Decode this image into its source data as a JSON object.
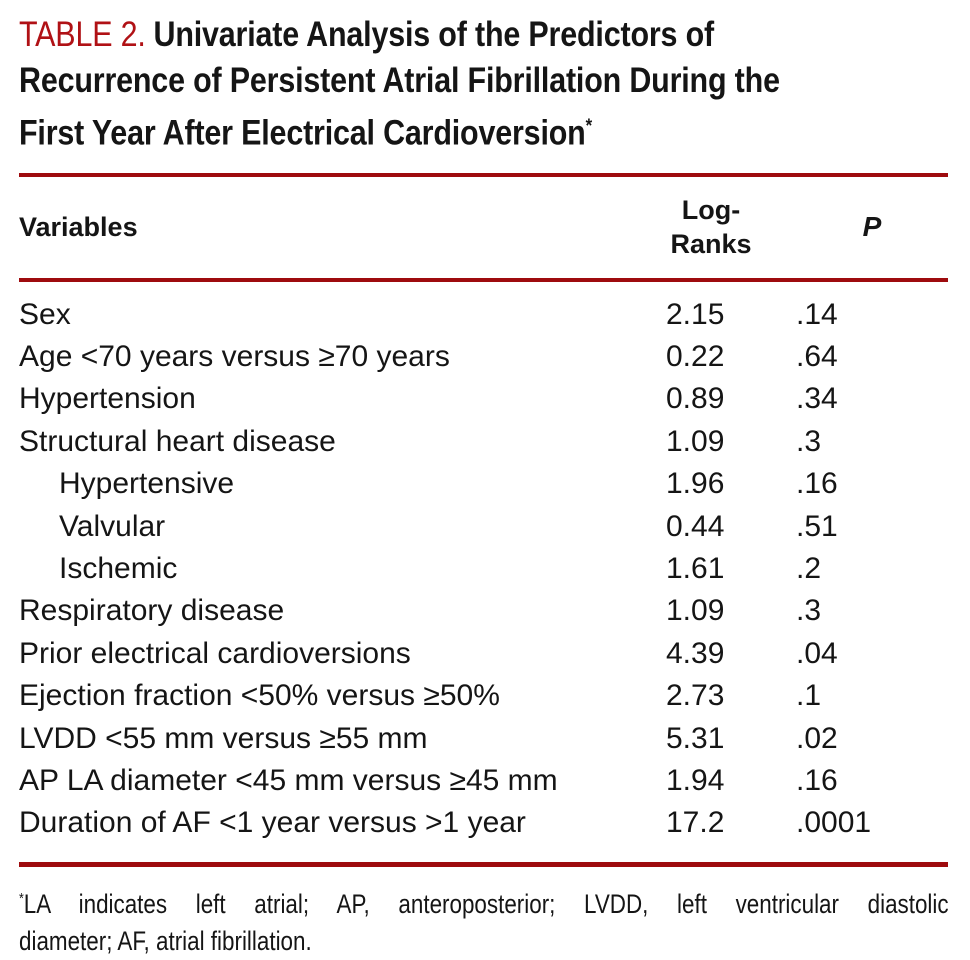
{
  "title": {
    "label": "TABLE 2.",
    "line1": "Univariate Analysis of the Predictors of",
    "line2": "Recurrence of Persistent Atrial Fibrillation During the",
    "line3": "First Year After Electrical Cardioversion",
    "footnote_marker": "*"
  },
  "table": {
    "header": {
      "variables": "Variables",
      "log_ranks": "Log-Ranks",
      "p": "P"
    },
    "rows": [
      {
        "variable": "Sex",
        "indent": false,
        "log_rank": "2.15",
        "p": ".14"
      },
      {
        "variable": "Age <70 years versus ≥70 years",
        "indent": false,
        "log_rank": "0.22",
        "p": ".64"
      },
      {
        "variable": "Hypertension",
        "indent": false,
        "log_rank": "0.89",
        "p": ".34"
      },
      {
        "variable": "Structural heart disease",
        "indent": false,
        "log_rank": "1.09",
        "p": ".3"
      },
      {
        "variable": "Hypertensive",
        "indent": true,
        "log_rank": "1.96",
        "p": ".16"
      },
      {
        "variable": "Valvular",
        "indent": true,
        "log_rank": "0.44",
        "p": ".51"
      },
      {
        "variable": "Ischemic",
        "indent": true,
        "log_rank": "1.61",
        "p": ".2"
      },
      {
        "variable": "Respiratory disease",
        "indent": false,
        "log_rank": "1.09",
        "p": ".3"
      },
      {
        "variable": "Prior electrical cardioversions",
        "indent": false,
        "log_rank": "4.39",
        "p": ".04"
      },
      {
        "variable": "Ejection fraction <50% versus ≥50%",
        "indent": false,
        "log_rank": "2.73",
        "p": ".1"
      },
      {
        "variable": "LVDD <55 mm versus ≥55 mm",
        "indent": false,
        "log_rank": "5.31",
        "p": ".02"
      },
      {
        "variable": "AP LA diameter <45 mm versus ≥45 mm",
        "indent": false,
        "log_rank": "1.94",
        "p": ".16"
      },
      {
        "variable": "Duration of AF <1 year versus >1 year",
        "indent": false,
        "log_rank": "17.2",
        "p": ".0001"
      }
    ]
  },
  "footnote": {
    "marker": "*",
    "line1": "LA indicates left atrial; AP, anteroposterior; LVDD, left ventricular diastolic",
    "line2": "diameter; AF, atrial fibrillation."
  },
  "colors": {
    "title_red": "#B01115",
    "rule_red": "#9E0B0E",
    "text_black": "#151515"
  }
}
